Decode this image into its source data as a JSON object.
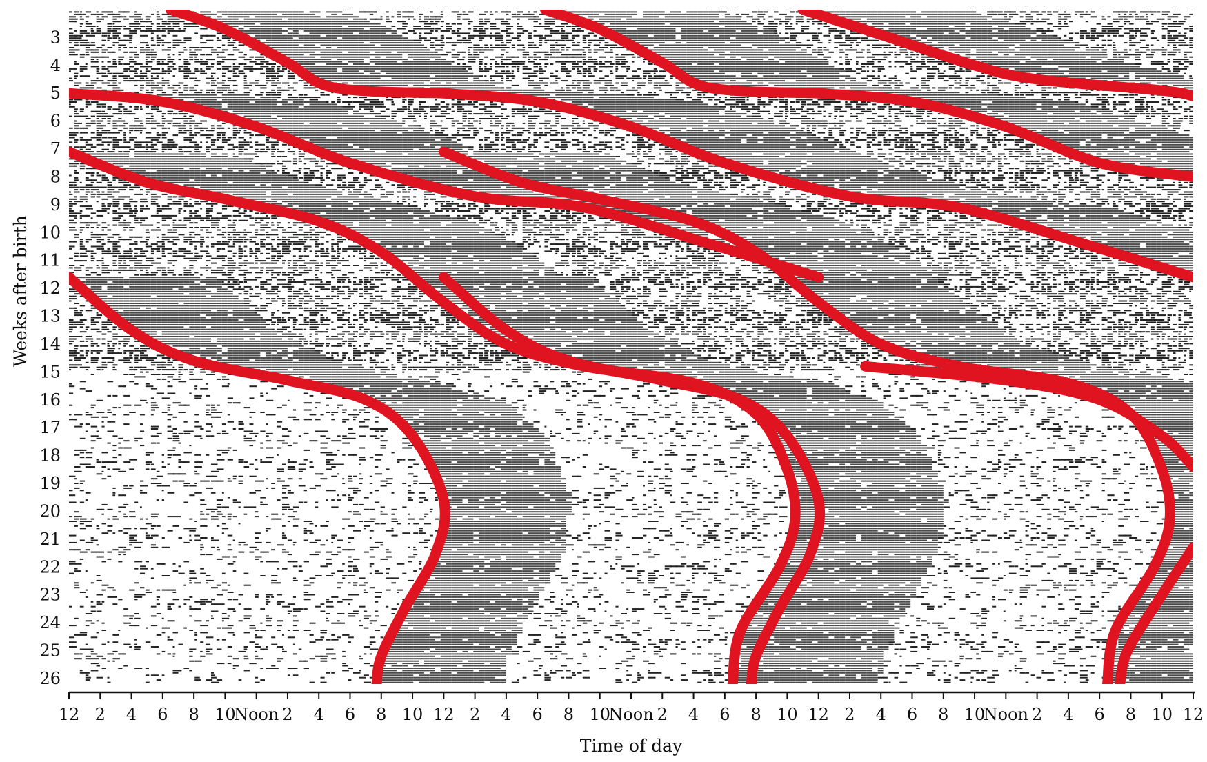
{
  "chart_data": {
    "type": "actogram",
    "ylabel": "Weeks after birth",
    "xlabel": "Time of day",
    "x_tick_labels": [
      "12",
      "2",
      "4",
      "6",
      "8",
      "10",
      "Noon",
      "2",
      "4",
      "6",
      "8",
      "10",
      "12",
      "2",
      "4",
      "6",
      "8",
      "10",
      "Noon",
      "2",
      "4",
      "6",
      "8",
      "10",
      "12",
      "2",
      "4",
      "6",
      "8",
      "10",
      "Noon",
      "2",
      "4",
      "6",
      "8",
      "10",
      "12"
    ],
    "x_range_hours": [
      0,
      72
    ],
    "y_tick_labels": [
      "3",
      "4",
      "5",
      "6",
      "7",
      "8",
      "9",
      "10",
      "11",
      "12",
      "13",
      "14",
      "15",
      "16",
      "17",
      "18",
      "19",
      "20",
      "21",
      "22",
      "23",
      "24",
      "25",
      "26"
    ],
    "y_range_weeks": [
      2,
      26.2
    ],
    "days_plotted": 3,
    "colors": {
      "curve": "#e01420",
      "sleep": "#4a4a4a",
      "axis": "#111111"
    },
    "sleep_onset_curves": [
      {
        "points": [
          [
            6.5,
            2
          ],
          [
            10,
            2.7
          ],
          [
            14,
            3.9
          ],
          [
            17,
            4.8
          ],
          [
            24,
            5.0
          ]
        ]
      },
      {
        "points": [
          [
            0,
            5.0
          ],
          [
            6,
            5.3
          ],
          [
            12,
            6.2
          ],
          [
            18,
            7.5
          ],
          [
            26,
            8.7
          ],
          [
            33,
            9.1
          ],
          [
            41,
            10.4
          ],
          [
            48,
            11.6
          ]
        ]
      },
      {
        "points": [
          [
            0,
            7.1
          ],
          [
            5,
            8.2
          ],
          [
            10,
            8.8
          ],
          [
            16,
            9.6
          ],
          [
            20,
            10.7
          ],
          [
            24,
            12.5
          ],
          [
            28,
            14.0
          ],
          [
            33,
            14.8
          ],
          [
            40,
            15.4
          ],
          [
            44,
            16.5
          ],
          [
            46,
            18.5
          ],
          [
            46.5,
            20.3
          ],
          [
            45.5,
            22.0
          ],
          [
            43,
            24.3
          ],
          [
            42.5,
            26.2
          ]
        ]
      },
      {
        "points": [
          [
            0,
            11.6
          ],
          [
            4,
            13.5
          ],
          [
            8,
            14.6
          ],
          [
            14,
            15.3
          ],
          [
            19,
            16.0
          ],
          [
            22,
            17.3
          ],
          [
            24,
            19.6
          ],
          [
            23.5,
            21.5
          ],
          [
            21.5,
            23.5
          ],
          [
            20,
            25.2
          ],
          [
            19.7,
            26.2
          ]
        ]
      },
      {
        "points": [
          [
            47,
            2
          ],
          [
            52,
            2.9
          ],
          [
            58,
            4.0
          ],
          [
            62,
            4.5
          ],
          [
            70,
            4.9
          ],
          [
            72,
            5.1
          ]
        ]
      },
      {
        "points": [
          [
            51,
            14.8
          ],
          [
            60,
            15.3
          ],
          [
            66,
            16.0
          ],
          [
            70,
            17.3
          ],
          [
            72,
            18.4
          ]
        ]
      },
      {
        "points": [
          [
            72,
            21.3
          ],
          [
            70,
            23.0
          ],
          [
            67.8,
            25.0
          ],
          [
            67.3,
            26.2
          ]
        ]
      },
      {
        "points": [
          [
            24,
            5.0
          ],
          [
            30,
            5.3
          ],
          [
            36,
            6.2
          ],
          [
            42,
            7.5
          ],
          [
            50,
            8.7
          ],
          [
            57,
            9.1
          ],
          [
            65,
            10.4
          ],
          [
            72,
            11.6
          ]
        ]
      },
      {
        "points": [
          [
            30.5,
            2
          ],
          [
            34,
            2.7
          ],
          [
            38,
            3.9
          ],
          [
            41,
            4.8
          ],
          [
            48,
            5.0
          ]
        ]
      },
      {
        "points": [
          [
            48,
            5.0
          ],
          [
            54,
            5.3
          ],
          [
            60,
            6.2
          ],
          [
            66,
            7.5
          ],
          [
            72,
            8.0
          ]
        ]
      },
      {
        "points": [
          [
            24,
            11.6
          ],
          [
            28,
            13.5
          ],
          [
            32,
            14.6
          ],
          [
            38,
            15.3
          ],
          [
            43,
            16.0
          ],
          [
            46,
            17.3
          ],
          [
            48,
            19.6
          ],
          [
            47.5,
            21.5
          ],
          [
            45.5,
            23.5
          ],
          [
            44,
            25.2
          ],
          [
            43.7,
            26.2
          ]
        ]
      },
      {
        "points": [
          [
            24,
            7.1
          ],
          [
            29,
            8.2
          ],
          [
            34,
            8.8
          ],
          [
            40,
            9.6
          ],
          [
            44,
            10.7
          ],
          [
            48,
            12.5
          ],
          [
            52,
            14.0
          ],
          [
            57,
            14.8
          ],
          [
            64,
            15.4
          ],
          [
            68,
            16.5
          ],
          [
            70,
            18.5
          ],
          [
            70.5,
            20.3
          ],
          [
            69.5,
            22.0
          ],
          [
            67,
            24.3
          ],
          [
            66.5,
            26.2
          ]
        ]
      }
    ]
  }
}
